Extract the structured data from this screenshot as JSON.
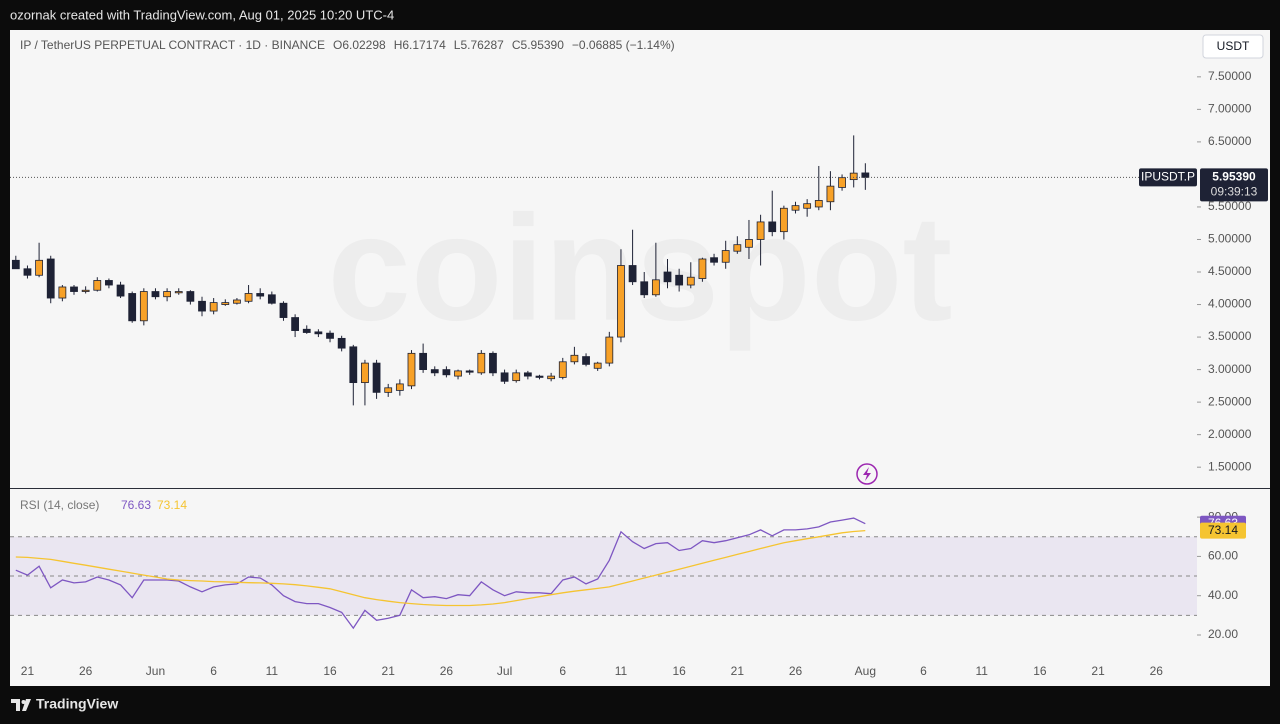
{
  "header": {
    "text": "ozornak created with TradingView.com, Aug 01, 2025 10:20 UTC-4"
  },
  "footer": {
    "brand": "TradingView"
  },
  "currency_button": "USDT",
  "watermark": "coinspot",
  "legend": {
    "symbol": "IP / TetherUS PERPETUAL CONTRACT · 1D · BINANCE",
    "items": [
      {
        "key": "O",
        "text": "6.02298"
      },
      {
        "key": "H",
        "text": "6.17174"
      },
      {
        "key": "L",
        "text": "5.76287"
      },
      {
        "key": "C",
        "text": "5.95390"
      }
    ],
    "change": "−0.06885 (−1.14%)"
  },
  "price_tag": {
    "symbol": "IPUSDT.P",
    "price": 5.9539,
    "price_label": "5.95390",
    "countdown": "09:39:13"
  },
  "chart_data": [
    {
      "type": "candlestick",
      "categories": [
        null,
        "21",
        null,
        null,
        null,
        null,
        "26",
        null,
        null,
        null,
        null,
        null,
        "Jun",
        null,
        null,
        null,
        null,
        "6",
        null,
        null,
        null,
        null,
        "11",
        null,
        null,
        null,
        null,
        "16",
        null,
        null,
        null,
        null,
        "21",
        null,
        null,
        null,
        null,
        "26",
        null,
        null,
        null,
        null,
        "Jul",
        null,
        null,
        null,
        null,
        "6",
        null,
        null,
        null,
        null,
        "11",
        null,
        null,
        null,
        null,
        "16",
        null,
        null,
        null,
        null,
        "21",
        null,
        null,
        null,
        null,
        "26",
        null,
        null,
        null,
        null,
        null,
        "Aug",
        null,
        null,
        null,
        null,
        "6",
        null,
        null,
        null,
        null,
        "11",
        null,
        null,
        null,
        null,
        "16",
        null,
        null,
        null,
        null,
        "21",
        null,
        null,
        null,
        null,
        "26",
        null,
        null,
        null
      ],
      "open": [
        4.68,
        4.55,
        4.45,
        4.7,
        4.1,
        4.27,
        4.2,
        4.22,
        4.37,
        4.3,
        4.17,
        3.75,
        4.2,
        4.12,
        4.18,
        4.2,
        4.05,
        3.9,
        4.0,
        4.02,
        4.05,
        4.17,
        4.15,
        4.02,
        3.8,
        3.62,
        3.58,
        3.56,
        3.48,
        3.35,
        2.8,
        3.1,
        2.65,
        2.68,
        2.75,
        3.25,
        3.0,
        3.0,
        2.9,
        2.98,
        2.95,
        3.25,
        2.95,
        2.83,
        2.95,
        2.9,
        2.86,
        2.88,
        3.12,
        3.2,
        3.02,
        3.1,
        3.5,
        4.6,
        4.35,
        4.15,
        4.5,
        4.45,
        4.3,
        4.4,
        4.72,
        4.65,
        4.82,
        4.88,
        5.0,
        5.27,
        5.12,
        5.45,
        5.48,
        5.5,
        5.58,
        5.8,
        5.92,
        6.02298,
        null,
        null,
        null,
        null,
        null,
        null,
        null,
        null,
        null,
        null,
        null,
        null,
        null,
        null,
        null,
        null,
        null,
        null,
        null,
        null,
        null,
        null,
        null,
        null,
        null,
        null,
        null,
        null
      ],
      "high": [
        4.75,
        4.6,
        4.95,
        4.75,
        4.3,
        4.3,
        4.28,
        4.42,
        4.4,
        4.35,
        4.2,
        4.25,
        4.25,
        4.25,
        4.25,
        4.22,
        4.12,
        4.1,
        4.08,
        4.1,
        4.3,
        4.25,
        4.2,
        4.05,
        3.85,
        3.68,
        3.62,
        3.6,
        3.52,
        3.38,
        3.15,
        3.15,
        2.78,
        2.85,
        3.3,
        3.4,
        3.05,
        3.05,
        3.0,
        3.0,
        3.3,
        3.28,
        3.0,
        3.0,
        2.98,
        2.92,
        2.95,
        3.18,
        3.35,
        3.25,
        3.12,
        3.58,
        4.85,
        5.15,
        4.5,
        4.95,
        4.7,
        4.55,
        4.65,
        4.72,
        4.78,
        4.98,
        5.05,
        5.3,
        5.38,
        5.75,
        5.52,
        5.58,
        5.62,
        6.13,
        6.05,
        6.0,
        6.6,
        6.17174,
        null,
        null,
        null,
        null,
        null,
        null,
        null,
        null,
        null,
        null,
        null,
        null,
        null,
        null,
        null,
        null,
        null,
        null,
        null,
        null,
        null,
        null,
        null,
        null,
        null,
        null,
        null,
        null
      ],
      "low": [
        4.55,
        4.4,
        4.42,
        4.02,
        4.05,
        4.15,
        4.17,
        4.2,
        4.25,
        4.1,
        3.72,
        3.68,
        4.08,
        4.05,
        4.15,
        4.0,
        3.82,
        3.85,
        3.98,
        4.0,
        4.02,
        4.08,
        4.0,
        3.75,
        3.5,
        3.55,
        3.5,
        3.42,
        3.28,
        2.45,
        2.45,
        2.55,
        2.58,
        2.6,
        2.7,
        2.95,
        2.9,
        2.88,
        2.85,
        2.92,
        2.92,
        2.9,
        2.78,
        2.8,
        2.85,
        2.85,
        2.82,
        2.85,
        3.08,
        3.05,
        2.98,
        3.05,
        3.42,
        4.3,
        4.1,
        4.12,
        4.25,
        4.2,
        4.25,
        4.35,
        4.6,
        4.55,
        4.78,
        4.7,
        4.6,
        5.05,
        5.0,
        5.4,
        5.35,
        5.45,
        5.45,
        5.75,
        5.8,
        5.76287,
        null,
        null,
        null,
        null,
        null,
        null,
        null,
        null,
        null,
        null,
        null,
        null,
        null,
        null,
        null,
        null,
        null,
        null,
        null,
        null,
        null,
        null,
        null,
        null,
        null,
        null,
        null,
        null
      ],
      "close": [
        4.55,
        4.45,
        4.68,
        4.1,
        4.27,
        4.2,
        4.22,
        4.37,
        4.3,
        4.13,
        3.75,
        4.2,
        4.12,
        4.2,
        4.2,
        4.05,
        3.9,
        4.03,
        4.03,
        4.07,
        4.17,
        4.13,
        4.02,
        3.8,
        3.6,
        3.57,
        3.55,
        3.48,
        3.33,
        2.8,
        3.1,
        2.65,
        2.72,
        2.78,
        3.25,
        3.0,
        2.95,
        2.92,
        2.98,
        2.96,
        3.25,
        2.95,
        2.82,
        2.95,
        2.9,
        2.88,
        2.9,
        3.12,
        3.22,
        3.08,
        3.1,
        3.5,
        4.6,
        4.35,
        4.15,
        4.38,
        4.35,
        4.3,
        4.42,
        4.7,
        4.65,
        4.83,
        4.92,
        5.0,
        5.27,
        5.12,
        5.48,
        5.52,
        5.55,
        5.6,
        5.82,
        5.95,
        6.02,
        5.9539,
        null,
        null,
        null,
        null,
        null,
        null,
        null,
        null,
        null,
        null,
        null,
        null,
        null,
        null,
        null,
        null,
        null,
        null,
        null,
        null,
        null,
        null,
        null,
        null,
        null,
        null,
        null,
        null
      ],
      "up_color": "#f7a128",
      "down_color": "#1e2235",
      "ylim": [
        1.18,
        8.22
      ],
      "yticks": [
        {
          "value": 1.5,
          "label": "1.50000"
        },
        {
          "value": 2,
          "label": "2.00000"
        },
        {
          "value": 2.5,
          "label": "2.50000"
        },
        {
          "value": 3,
          "label": "3.00000"
        },
        {
          "value": 3.5,
          "label": "3.50000"
        },
        {
          "value": 4,
          "label": "4.00000"
        },
        {
          "value": 4.5,
          "label": "4.50000"
        },
        {
          "value": 5,
          "label": "5.00000"
        },
        {
          "value": 5.5,
          "label": "5.50000"
        },
        {
          "value": 6.5,
          "label": "6.50000"
        },
        {
          "value": 7,
          "label": "7.00000"
        },
        {
          "value": 7.5,
          "label": "7.50000"
        }
      ]
    },
    {
      "type": "line",
      "title": "RSI (14, close)",
      "series": [
        {
          "color": "#7e57c2",
          "values": [
            53,
            50.5,
            55,
            44,
            48,
            46.5,
            47,
            49.5,
            48,
            45.5,
            39,
            48,
            48,
            48,
            47.5,
            44.5,
            42,
            44.5,
            45.5,
            46,
            49.5,
            49,
            45.5,
            40,
            37,
            36,
            36,
            34,
            31.5,
            23.5,
            32.5,
            27.5,
            28.5,
            30,
            43,
            39,
            39.5,
            38.5,
            40.5,
            40,
            47,
            43,
            40,
            42,
            41.5,
            41.5,
            41,
            48,
            49.5,
            46,
            48.5,
            58,
            72.5,
            67.5,
            64,
            66.5,
            67,
            63,
            64,
            68,
            67,
            68,
            69.5,
            71,
            73.5,
            70.5,
            73.5,
            73.5,
            74,
            75,
            77.5,
            78.5,
            79.5,
            76.63,
            null,
            null,
            null,
            null,
            null,
            null,
            null,
            null,
            null,
            null,
            null,
            null,
            null,
            null,
            null,
            null,
            null,
            null,
            null,
            null,
            null,
            null,
            null,
            null,
            null,
            null,
            null,
            null
          ]
        },
        {
          "color": "#f5c431",
          "values": [
            59.7,
            59.5,
            59,
            58.5,
            57.5,
            56.5,
            55.5,
            54.5,
            53.5,
            52.5,
            51.5,
            50.5,
            49.5,
            48.5,
            48,
            47.7,
            47.5,
            47.2,
            47,
            46.8,
            46.6,
            46.5,
            46.3,
            46,
            45.6,
            45,
            44.3,
            43.5,
            42,
            40.5,
            39,
            38,
            37.2,
            36.5,
            36,
            35.5,
            35.2,
            35,
            35,
            35,
            35.3,
            35.8,
            36.5,
            37.5,
            38.5,
            39.5,
            40.5,
            41.5,
            42.3,
            43,
            43.7,
            44.5,
            46,
            47.5,
            49,
            50.5,
            52,
            53.5,
            55,
            56.5,
            58,
            59.5,
            61,
            62.5,
            64,
            65.5,
            67,
            68,
            69,
            70,
            71,
            72,
            72.7,
            73.14,
            null,
            null,
            null,
            null,
            null,
            null,
            null,
            null,
            null,
            null,
            null,
            null,
            null,
            null,
            null,
            null,
            null,
            null,
            null,
            null,
            null,
            null,
            null,
            null,
            null,
            null,
            null,
            null
          ]
        }
      ],
      "ylim": [
        8.8,
        93.8
      ],
      "yticks": [
        {
          "value": 20,
          "label": "20.00"
        },
        {
          "value": 40,
          "label": "40.00"
        },
        {
          "value": 60,
          "label": "60.00"
        },
        {
          "value": 80,
          "label": "80.00"
        }
      ],
      "levels": [
        30,
        50,
        70
      ]
    }
  ]
}
